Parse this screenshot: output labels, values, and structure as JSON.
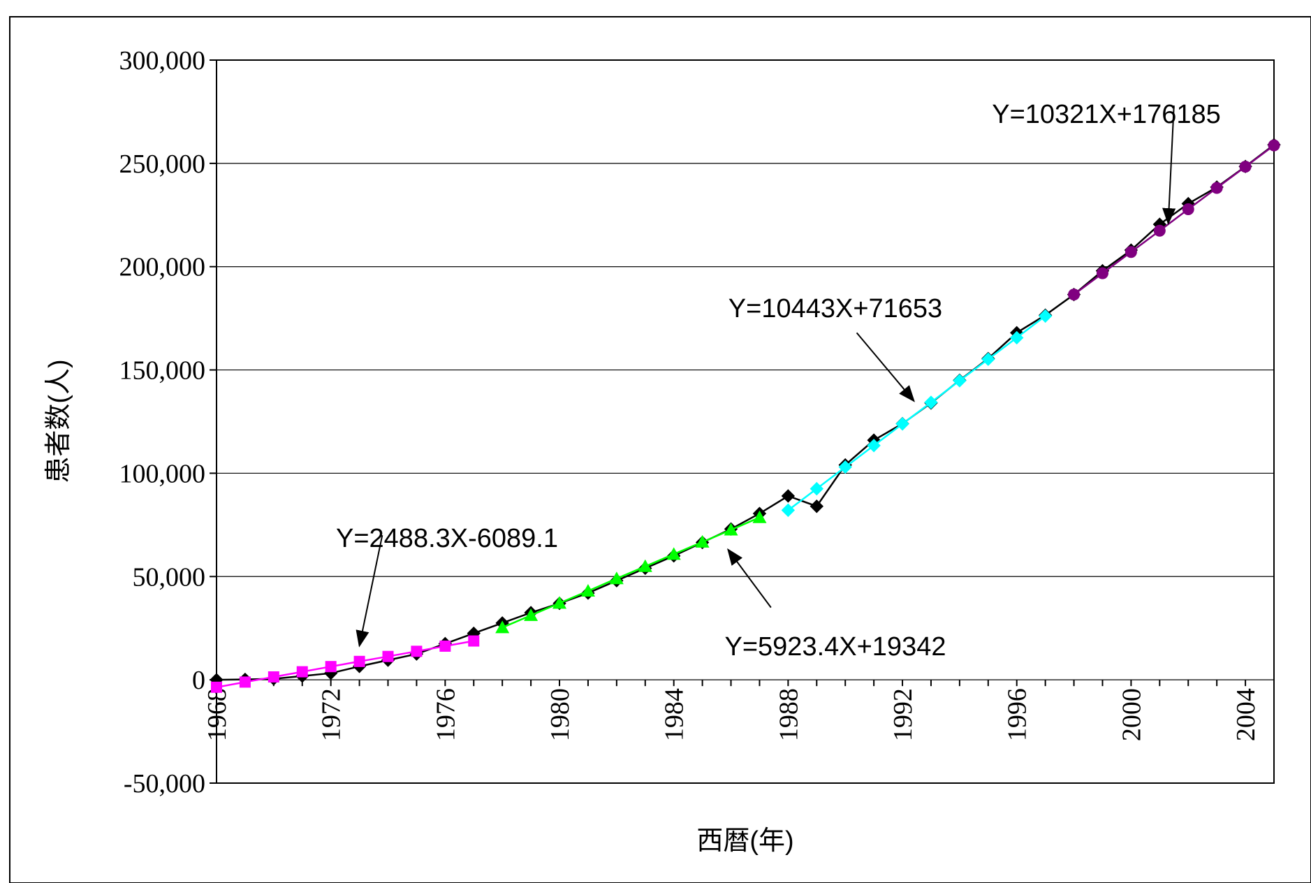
{
  "chart_data": {
    "type": "line",
    "title": "",
    "xlabel": "西暦(年)",
    "ylabel": "患者数(人)",
    "xlim": [
      1968,
      2005
    ],
    "ylim": [
      -50000,
      300000
    ],
    "x_ticks": [
      1968,
      1972,
      1976,
      1980,
      1984,
      1988,
      1992,
      1996,
      2000,
      2004
    ],
    "y_ticks": [
      -50000,
      0,
      50000,
      100000,
      150000,
      200000,
      250000,
      300000
    ],
    "y_tick_labels": [
      "-50,000",
      "0",
      "50,000",
      "100,000",
      "150,000",
      "200,000",
      "250,000",
      "300,000"
    ],
    "grid": "horizontal",
    "legend": "none",
    "series": [
      {
        "color": "#000000",
        "marker": "diamond",
        "x": [
          1968,
          1969,
          1970,
          1971,
          1972,
          1973,
          1974,
          1975,
          1976,
          1977,
          1978,
          1979,
          1980,
          1981,
          1982,
          1983,
          1984,
          1985,
          1986,
          1987,
          1988,
          1989,
          1990,
          1991,
          1992,
          1993,
          1994,
          1995,
          1996,
          1997,
          1998,
          1999,
          2000,
          2001,
          2002,
          2003,
          2004,
          2005
        ],
        "y": [
          0,
          200,
          500,
          1800,
          3200,
          6500,
          9500,
          12500,
          17500,
          22500,
          27500,
          32500,
          37000,
          42000,
          48000,
          54000,
          60000,
          66500,
          73000,
          80500,
          89000,
          84000,
          104000,
          116000,
          124000,
          134000,
          145000,
          155500,
          168000,
          176500,
          186500,
          198000,
          208000,
          220500,
          230500,
          238500,
          248500,
          259000
        ]
      },
      {
        "color": "#ff00ff",
        "marker": "square",
        "x": [
          1968,
          1969,
          1970,
          1971,
          1972,
          1973,
          1974,
          1975,
          1976,
          1977
        ],
        "y": [
          -3600,
          -1100,
          1400,
          3900,
          6400,
          8900,
          11300,
          13800,
          16300,
          18800
        ]
      },
      {
        "color": "#00ff00",
        "marker": "triangle",
        "x": [
          1978,
          1979,
          1980,
          1981,
          1982,
          1983,
          1984,
          1985,
          1986,
          1987
        ],
        "y": [
          25300,
          31200,
          37100,
          43000,
          49000,
          54900,
          60800,
          66700,
          72600,
          78600
        ]
      },
      {
        "color": "#00ffff",
        "marker": "diamond",
        "x": [
          1988,
          1989,
          1990,
          1991,
          1992,
          1993,
          1994,
          1995,
          1996,
          1997
        ],
        "y": [
          82100,
          92500,
          103000,
          113400,
          123900,
          134300,
          144800,
          155200,
          165600,
          176100
        ]
      },
      {
        "color": "#800080",
        "marker": "circle",
        "x": [
          1998,
          1999,
          2000,
          2001,
          2002,
          2003,
          2004,
          2005
        ],
        "y": [
          186500,
          196800,
          207100,
          217400,
          227800,
          238100,
          248400,
          258700
        ]
      }
    ],
    "annotations": [
      {
        "text": "Y=10321X+176185",
        "from": [
          2001.5,
          278000
        ],
        "to": [
          2001.3,
          221000
        ]
      },
      {
        "text": "Y=10443X+71653",
        "from": [
          1990.4,
          168000
        ],
        "to": [
          1992.4,
          135000
        ]
      },
      {
        "text": "Y=2488.3X-6089.1",
        "from": [
          1973.8,
          70000
        ],
        "to": [
          1973.0,
          16500
        ]
      },
      {
        "text": "Y=5923.4X+19342",
        "from": [
          1987.4,
          35000
        ],
        "to": [
          1985.9,
          63000
        ]
      }
    ]
  }
}
